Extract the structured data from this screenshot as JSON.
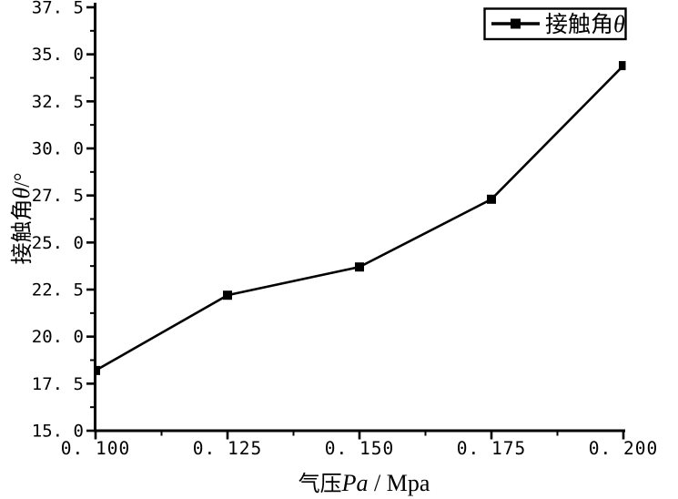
{
  "figure": {
    "background_color": "#ffffff",
    "ink_color": "#000000"
  },
  "chart_data": {
    "type": "line",
    "title": "",
    "x": [
      0.1,
      0.125,
      0.15,
      0.175,
      0.2
    ],
    "series": [
      {
        "name": "接触角θ",
        "values": [
          18.2,
          22.2,
          23.7,
          27.3,
          34.4
        ],
        "color": "#000000",
        "marker": "filled-square",
        "line_style": "solid"
      }
    ],
    "xlabel": "气压Pa / Mpa",
    "ylabel": "接触角θ/°",
    "xlabel_parts": {
      "prefix": "气压",
      "italic": "Pa",
      "suffix": " / Mpa"
    },
    "ylabel_parts": {
      "prefix": "接触角",
      "italic": "θ",
      "suffix": "/°"
    },
    "xlim": [
      0.1,
      0.2
    ],
    "ylim": [
      15.0,
      37.5
    ],
    "x_ticks": [
      0.1,
      0.125,
      0.15,
      0.175,
      0.2
    ],
    "x_tick_labels": [
      "0. 100",
      "0. 125",
      "0. 150",
      "0. 175",
      "0. 200"
    ],
    "y_ticks": [
      15.0,
      17.5,
      20.0,
      22.5,
      25.0,
      27.5,
      30.0,
      32.5,
      35.0,
      37.5
    ],
    "y_tick_labels": [
      "15. 0",
      "17. 5",
      "20. 0",
      "22. 5",
      "25. 0",
      "27. 5",
      "30. 0",
      "32. 5",
      "35. 0",
      "37. 5"
    ],
    "minor_ticks": "one-between-majors",
    "tick_direction": "out",
    "grid": false,
    "legend": {
      "position": "top-right",
      "border": true,
      "entries": [
        {
          "label_prefix": "接触角",
          "label_italic": "θ",
          "marker": "filled-square",
          "color": "#000000"
        }
      ]
    }
  }
}
